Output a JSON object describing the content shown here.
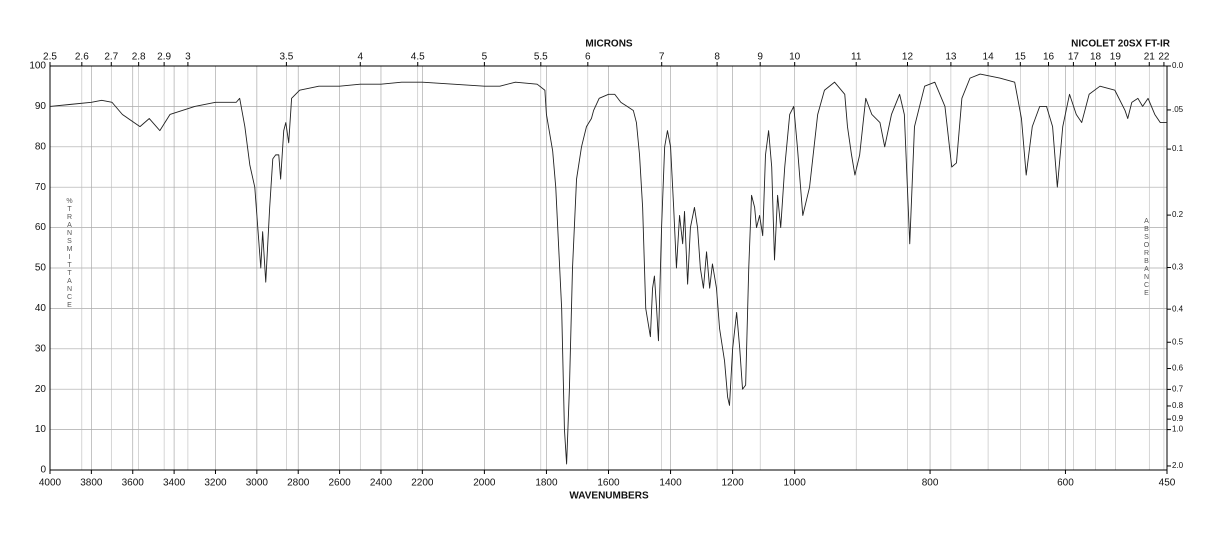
{
  "chart_data": {
    "type": "line",
    "instrument": "NICOLET 20SX FT-IR",
    "x2label": "MICRONS",
    "xlabel": "WAVENUMBERS",
    "ylabel": "%TRANSMITTANCE",
    "y2label": "ABSORBANCE",
    "xlim": [
      4000,
      450
    ],
    "xscale": "piecewise",
    "xbreaks": [
      2200,
      1000
    ],
    "xticks": [
      4000,
      3800,
      3600,
      3400,
      3200,
      3000,
      2800,
      2600,
      2400,
      2200,
      2000,
      1800,
      1600,
      1400,
      1200,
      1000,
      800,
      600,
      450
    ],
    "x2scale": "microns",
    "x2ticks": [
      2.5,
      2.6,
      2.7,
      2.8,
      2.9,
      3,
      3.5,
      4,
      4.5,
      5,
      5.5,
      6,
      7,
      8,
      9,
      10,
      11,
      12,
      13,
      14,
      15,
      16,
      17,
      18,
      19,
      21,
      22
    ],
    "ylim": [
      0,
      100
    ],
    "yticks": [
      0,
      10,
      20,
      30,
      40,
      50,
      60,
      70,
      80,
      90,
      100
    ],
    "y2scale": "absorbance",
    "y2ticks": [
      {
        "value": 0,
        "label": "0.0"
      },
      {
        "value": 0.05,
        "label": ".05"
      },
      0.1,
      0.2,
      0.3,
      0.4,
      0.5,
      0.6,
      0.7,
      0.8,
      0.9,
      {
        "value": 1,
        "label": "1.0"
      },
      {
        "value": 2,
        "label": "2.0"
      }
    ],
    "grid": true,
    "color": "#222222",
    "x": [
      4000,
      3900,
      3800,
      3750,
      3700,
      3650,
      3565,
      3520,
      3469,
      3420,
      3300,
      3200,
      3100,
      3083,
      3058,
      3034,
      3010,
      2981,
      2972,
      2957,
      2938,
      2923,
      2909,
      2894,
      2885,
      2870,
      2860,
      2846,
      2832,
      2793,
      2700,
      2600,
      2500,
      2400,
      2300,
      2200,
      2100,
      2000,
      1950,
      1900,
      1830,
      1805,
      1800,
      1780,
      1770,
      1751,
      1742,
      1735,
      1726,
      1716,
      1703,
      1687,
      1671,
      1655,
      1648,
      1630,
      1600,
      1580,
      1560,
      1540,
      1520,
      1510,
      1500,
      1490,
      1480,
      1465,
      1458,
      1452,
      1445,
      1439,
      1429,
      1419,
      1410,
      1400,
      1390,
      1381,
      1371,
      1361,
      1355,
      1345,
      1336,
      1323,
      1313,
      1304,
      1294,
      1284,
      1274,
      1265,
      1252,
      1242,
      1232,
      1226,
      1216,
      1210,
      1200,
      1187,
      1177,
      1168,
      1158,
      1148,
      1139,
      1129,
      1123,
      1113,
      1103,
      1094,
      1084,
      1074,
      1065,
      1055,
      1045,
      1032,
      1016,
      1003,
      996,
      988,
      978,
      966,
      956,
      941,
      926,
      922,
      916,
      911,
      904,
      895,
      886,
      874,
      867,
      857,
      845,
      838,
      830,
      823,
      808,
      793,
      778,
      768,
      761,
      753,
      741,
      726,
      697,
      675,
      665,
      658,
      649,
      638,
      628,
      619,
      612,
      604,
      594,
      584,
      576,
      565,
      549,
      527,
      512,
      508,
      502,
      493,
      486,
      478,
      468,
      460,
      450
    ],
    "values": [
      90,
      90.5,
      91,
      91.5,
      91,
      88,
      85,
      87,
      84,
      88,
      90,
      91,
      91,
      92,
      85,
      75.5,
      70,
      50,
      59,
      46.5,
      65,
      77,
      78,
      78,
      72,
      84,
      86,
      81,
      92,
      94,
      95,
      95,
      95.5,
      95.5,
      96,
      96,
      95.5,
      95,
      95,
      96,
      95.5,
      94,
      88,
      79,
      70,
      40,
      10,
      1.5,
      20,
      50,
      72,
      80,
      85,
      87,
      89,
      92,
      93,
      93,
      91,
      90,
      89,
      86,
      78,
      65,
      40,
      33,
      45,
      48,
      40,
      32,
      60,
      80,
      84,
      80,
      65,
      50,
      63,
      56,
      64,
      46,
      60,
      65,
      60,
      50,
      45,
      54,
      45,
      51,
      45,
      35,
      30,
      27,
      18,
      16,
      30,
      39,
      30,
      20,
      21,
      50,
      68,
      65,
      60,
      63,
      58,
      78,
      84,
      75,
      52,
      68,
      60,
      75,
      88,
      90,
      80,
      63,
      70,
      88,
      94,
      96,
      93,
      85,
      78,
      73,
      78,
      92,
      88,
      86,
      80,
      88,
      93,
      88,
      56,
      85,
      95,
      96,
      90,
      75,
      76,
      92,
      97,
      98,
      97,
      96,
      87,
      73,
      85,
      90,
      90,
      85,
      70,
      85,
      93,
      88,
      86,
      93,
      95,
      94,
      89,
      87,
      91,
      92,
      90,
      92,
      88,
      86,
      86
    ]
  }
}
